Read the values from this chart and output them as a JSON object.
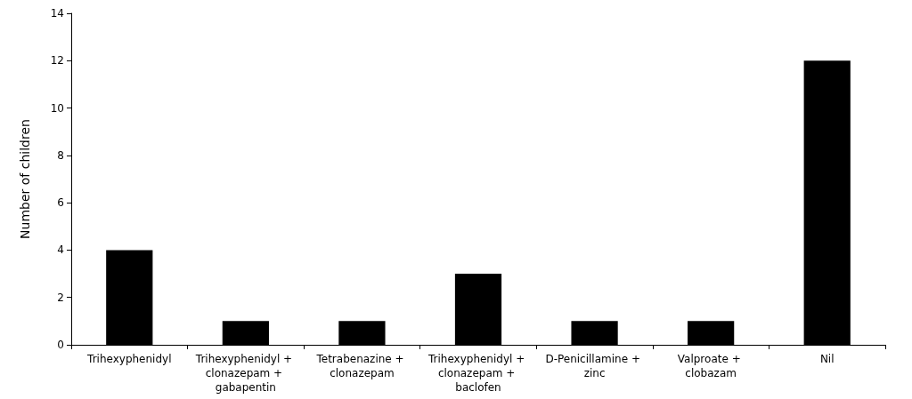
{
  "chart_data": {
    "type": "bar",
    "ylabel": "Number of children",
    "categories": [
      "Trihexyphenidyl",
      "Trihexyphenidyl + clonazepam + gabapentin",
      "Tetrabenazine + clonazepam",
      "Trihexyphenidyl + clonazepam + baclofen",
      "D-Penicillamine + zinc",
      "Valproate + clobazam",
      "Nil"
    ],
    "values": [
      4,
      1,
      1,
      3,
      1,
      1,
      12
    ],
    "color": "#000000",
    "ylim": [
      0,
      14
    ],
    "yticks": [
      0,
      2,
      4,
      6,
      8,
      10,
      12,
      14
    ]
  }
}
